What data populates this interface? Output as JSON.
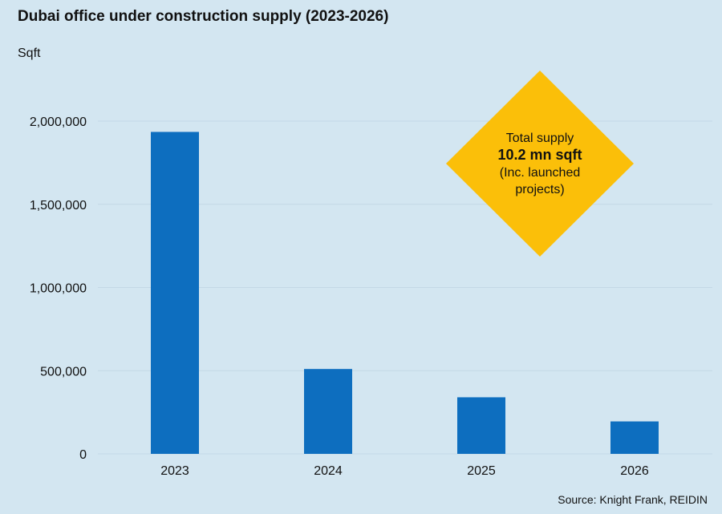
{
  "chart_data": {
    "type": "bar",
    "title": "Dubai office under construction supply (2023-2026)",
    "ylabel": "Sqft",
    "categories": [
      "2023",
      "2024",
      "2025",
      "2026"
    ],
    "values": [
      1935000,
      510000,
      340000,
      195000
    ],
    "ylim": [
      0,
      2000000
    ],
    "yticks": [
      0,
      500000,
      1000000,
      1500000,
      2000000
    ],
    "ytick_labels": [
      "0",
      "500,000",
      "1,000,000",
      "1,500,000",
      "2,000,000"
    ],
    "grid": true,
    "bar_color": "#0d6ebf",
    "callout": {
      "line1": "Total supply",
      "line2": "10.2 mn sqft",
      "line3": "(Inc. launched",
      "line4": "projects)",
      "color": "#fbbf09"
    },
    "source": "Source: Knight Frank, REIDIN"
  }
}
